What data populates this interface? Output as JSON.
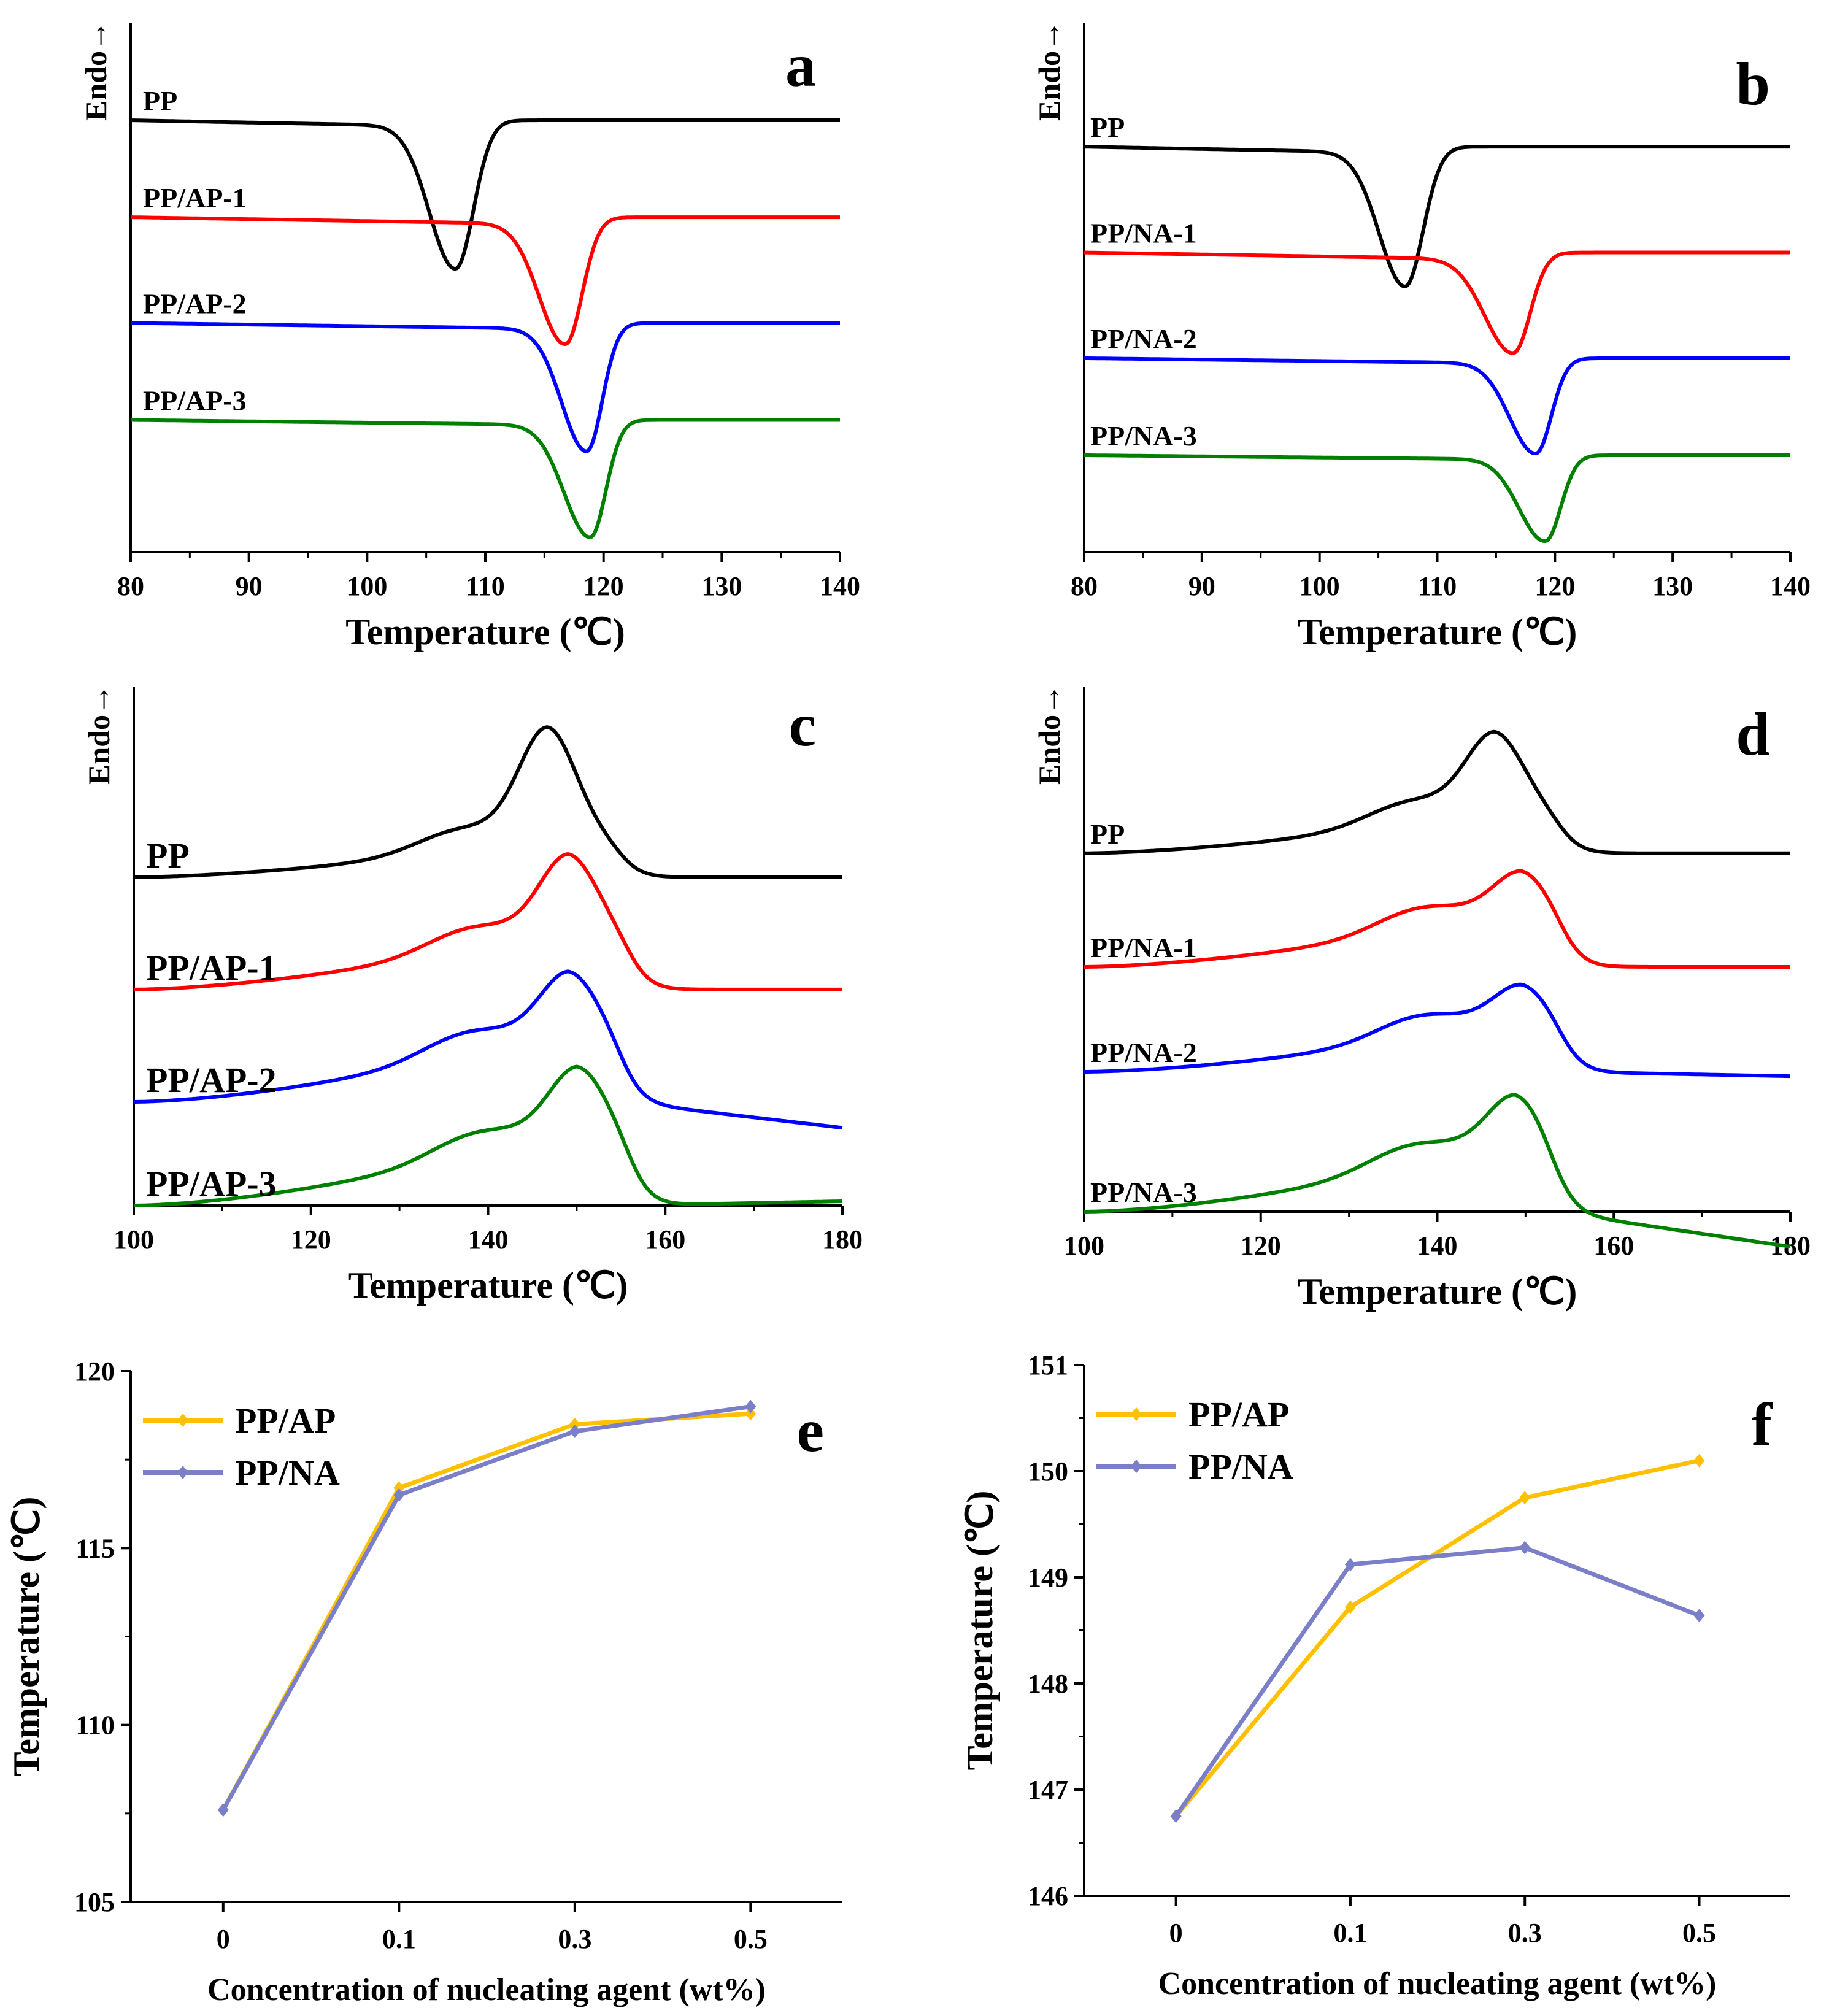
{
  "chart_data": [
    {
      "panel": "a",
      "type": "line",
      "title": "a",
      "ylabel": "Endo→",
      "xlabel": "Temperature (℃)",
      "xlim": [
        80,
        140
      ],
      "xticks": [
        80,
        90,
        100,
        110,
        120,
        130,
        140
      ],
      "baseline_units_above_bottom": [
        49,
        38,
        26,
        15
      ],
      "series": [
        {
          "name": "PP",
          "label": "PP",
          "color": "#000000",
          "peak_T": 107.5,
          "depth": 16.5,
          "width_left": 2.2,
          "width_right": 1.5,
          "tilt": 0.7,
          "direction": "down"
        },
        {
          "name": "PP/AP-1",
          "label": "PP/AP-1",
          "color": "#ff0000",
          "peak_T": 116.8,
          "depth": 14.0,
          "width_left": 2.2,
          "width_right": 1.4,
          "tilt": 0.8,
          "direction": "down"
        },
        {
          "name": "PP/AP-2",
          "label": "PP/AP-2",
          "color": "#0000ff",
          "peak_T": 118.6,
          "depth": 14.2,
          "width_left": 2.1,
          "width_right": 1.3,
          "tilt": 0.7,
          "direction": "down"
        },
        {
          "name": "PP/AP-3",
          "label": "PP/AP-3",
          "color": "#008000",
          "peak_T": 118.9,
          "depth": 13.0,
          "width_left": 2.2,
          "width_right": 1.3,
          "tilt": 0.6,
          "direction": "down"
        }
      ]
    },
    {
      "panel": "b",
      "type": "line",
      "title": "b",
      "ylabel": "Endo→",
      "xlabel": "Temperature (℃)",
      "xlim": [
        80,
        140
      ],
      "xticks": [
        80,
        90,
        100,
        110,
        120,
        130,
        140
      ],
      "baseline_units_above_bottom": [
        46,
        34,
        22,
        11
      ],
      "series": [
        {
          "name": "PP",
          "label": "PP",
          "color": "#000000",
          "peak_T": 107.3,
          "depth": 15.5,
          "width_left": 2.2,
          "width_right": 1.5,
          "tilt": 0.7,
          "direction": "down"
        },
        {
          "name": "PP/NA-1",
          "label": "PP/NA-1",
          "color": "#ff0000",
          "peak_T": 116.5,
          "depth": 11.0,
          "width_left": 2.4,
          "width_right": 1.4,
          "tilt": 0.8,
          "direction": "down"
        },
        {
          "name": "PP/NA-2",
          "label": "PP/NA-2",
          "color": "#0000ff",
          "peak_T": 118.4,
          "depth": 10.5,
          "width_left": 2.2,
          "width_right": 1.3,
          "tilt": 0.6,
          "direction": "down"
        },
        {
          "name": "PP/NA-3",
          "label": "PP/NA-3",
          "color": "#008000",
          "peak_T": 119.2,
          "depth": 9.5,
          "width_left": 2.2,
          "width_right": 1.3,
          "tilt": 0.5,
          "direction": "down"
        }
      ]
    },
    {
      "panel": "c",
      "type": "line",
      "title": "c",
      "ylabel": "Endo→",
      "xlabel": "Temperature (℃)",
      "xlim": [
        100,
        180
      ],
      "xticks": [
        100,
        120,
        140,
        160,
        180
      ],
      "baseline_units_above_bottom": [
        38,
        25,
        12,
        0
      ],
      "series": [
        {
          "name": "PP",
          "label": "PP",
          "color": "#000000",
          "peak_T": 146.7,
          "peak_height": 17.0,
          "shoulder_T": 137,
          "shoulder_h": 4.5,
          "start_drop": 10.0,
          "end_T": 155.0,
          "end_offset": 0.0,
          "direction": "up"
        },
        {
          "name": "PP/AP-1",
          "label": "PP/AP-1",
          "color": "#ff0000",
          "peak_T": 149.0,
          "peak_height": 15.5,
          "shoulder_T": 138,
          "shoulder_h": 7.0,
          "start_drop": 0.5,
          "end_T": 156.0,
          "end_offset": 0.0,
          "direction": "up"
        },
        {
          "name": "PP/AP-2",
          "label": "PP/AP-2",
          "color": "#0000ff",
          "peak_T": 149.0,
          "peak_height": 15.0,
          "shoulder_T": 137.5,
          "shoulder_h": 8.5,
          "start_drop": 1.0,
          "end_T": 155.0,
          "end_offset": -3.0,
          "direction": "up"
        },
        {
          "name": "PP/AP-3",
          "label": "PP/AP-3",
          "color": "#008000",
          "peak_T": 150.0,
          "peak_height": 16.0,
          "shoulder_T": 138.5,
          "shoulder_h": 9.0,
          "start_drop": 0.5,
          "end_T": 156.0,
          "end_offset": 0.5,
          "direction": "up"
        }
      ]
    },
    {
      "panel": "d",
      "type": "line",
      "title": "d",
      "ylabel": "Endo→",
      "xlabel": "Temperature (℃)",
      "xlim": [
        100,
        180
      ],
      "xticks": [
        100,
        120,
        140,
        160,
        180
      ],
      "baseline_units_above_bottom": [
        41,
        28,
        16,
        0
      ],
      "series": [
        {
          "name": "PP",
          "label": "PP",
          "color": "#000000",
          "peak_T": 146.5,
          "peak_height": 13.5,
          "shoulder_T": 137,
          "shoulder_h": 5.0,
          "start_drop": 0.0,
          "end_T": 154.0,
          "end_offset": 0.0,
          "direction": "up"
        },
        {
          "name": "PP/NA-1",
          "label": "PP/NA-1",
          "color": "#ff0000",
          "peak_T": 149.5,
          "peak_height": 11.0,
          "shoulder_T": 138,
          "shoulder_h": 6.5,
          "start_drop": 0.0,
          "end_T": 154.0,
          "end_offset": 0.0,
          "direction": "up"
        },
        {
          "name": "PP/NA-2",
          "label": "PP/NA-2",
          "color": "#0000ff",
          "peak_T": 149.5,
          "peak_height": 10.0,
          "shoulder_T": 138,
          "shoulder_h": 6.0,
          "start_drop": 0.0,
          "end_T": 154.0,
          "end_offset": -0.5,
          "direction": "up"
        },
        {
          "name": "PP/NA-3",
          "label": "PP/NA-3",
          "color": "#008000",
          "peak_T": 148.8,
          "peak_height": 13.5,
          "shoulder_T": 137,
          "shoulder_h": 8.0,
          "start_drop": 0.0,
          "end_T": 153.0,
          "end_offset": -4.0,
          "direction": "up"
        }
      ]
    },
    {
      "panel": "e",
      "type": "line",
      "title": "e",
      "xlabel": "Concentration of  nucleating agent (wt%)",
      "ylabel": "Temperature (℃)",
      "categories": [
        "0",
        "0.1",
        "0.3",
        "0.5"
      ],
      "ylim": [
        105,
        120
      ],
      "yticks": [
        105,
        110,
        115,
        120
      ],
      "series": [
        {
          "name": "PP/AP",
          "color": "#ffc000",
          "values": [
            107.6,
            116.7,
            118.5,
            118.8
          ]
        },
        {
          "name": "PP/NA",
          "color": "#7a7fc8",
          "values": [
            107.6,
            116.5,
            118.3,
            119.0
          ]
        }
      ]
    },
    {
      "panel": "f",
      "type": "line",
      "title": "f",
      "xlabel": "Concentration of  nucleating agent (wt%)",
      "ylabel": "Temperature (℃)",
      "categories": [
        "0",
        "0.1",
        "0.3",
        "0.5"
      ],
      "ylim": [
        146,
        151
      ],
      "yticks": [
        146,
        147,
        148,
        149,
        150,
        151
      ],
      "series": [
        {
          "name": "PP/AP",
          "color": "#ffc000",
          "values": [
            146.75,
            148.72,
            149.75,
            150.1
          ]
        },
        {
          "name": "PP/NA",
          "color": "#7a7fc8",
          "values": [
            146.75,
            149.12,
            149.28,
            148.64
          ]
        }
      ]
    }
  ]
}
